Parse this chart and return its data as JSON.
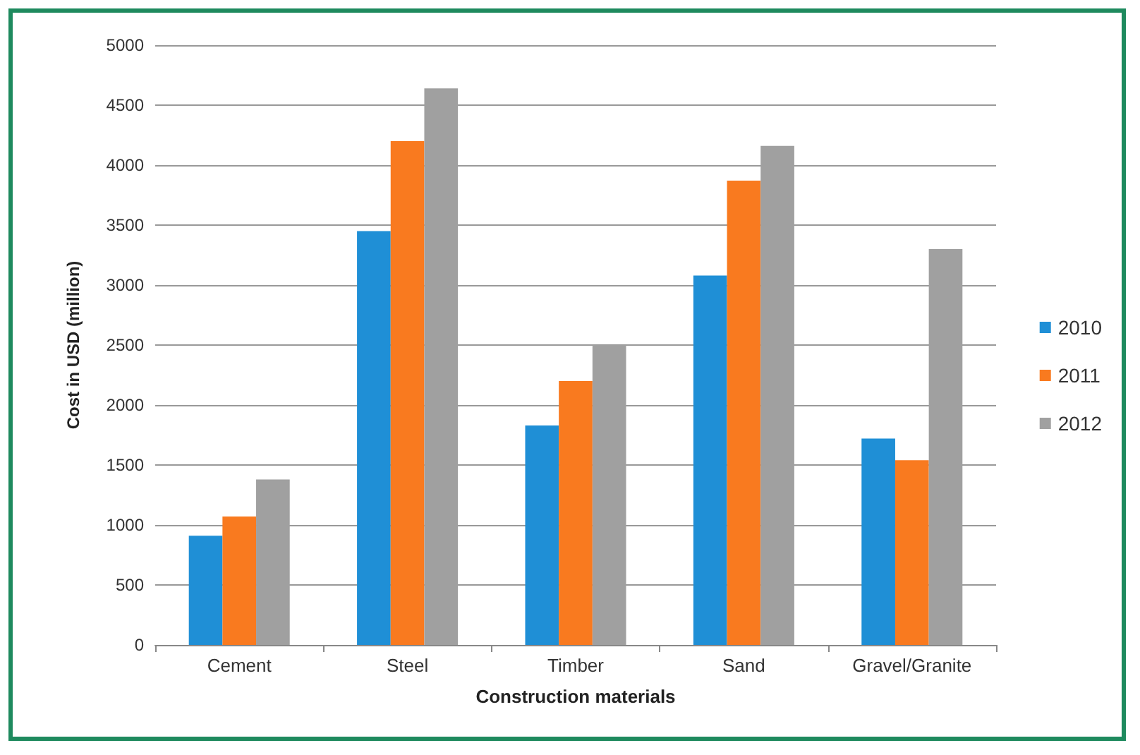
{
  "chart_data": {
    "type": "bar",
    "xlabel": "Construction materials",
    "ylabel": "Cost in USD (million)",
    "categories": [
      "Cement",
      "Steel",
      "Timber",
      "Sand",
      "Gravel/Granite"
    ],
    "series": [
      {
        "name": "2010",
        "color": "#1f8fd6",
        "values": [
          910,
          3450,
          1830,
          3080,
          1720
        ]
      },
      {
        "name": "2011",
        "color": "#f97a1f",
        "values": [
          1070,
          4200,
          2200,
          3870,
          1540
        ]
      },
      {
        "name": "2012",
        "color": "#a0a0a0",
        "values": [
          1380,
          4640,
          2500,
          4160,
          3300
        ]
      }
    ],
    "ylim": [
      0,
      5000
    ],
    "yticks": [
      0,
      500,
      1000,
      1500,
      2000,
      2500,
      3000,
      3500,
      4000,
      4500,
      5000
    ],
    "grid": "y",
    "legend": "right"
  }
}
